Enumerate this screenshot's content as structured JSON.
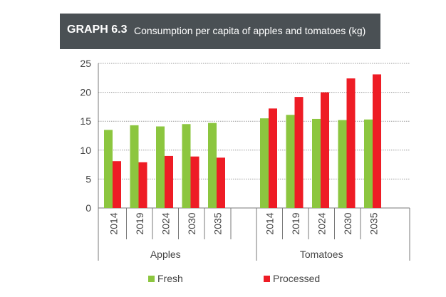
{
  "title": {
    "label": "GRAPH 6.3",
    "text": "Consumption per capita of apples and tomatoes (kg)"
  },
  "chart_data": {
    "type": "bar",
    "title": "GRAPH 6.3 Consumption per capita of apples and tomatoes (kg)",
    "xlabel": "",
    "ylabel": "",
    "ylim": [
      0,
      25
    ],
    "yticks": [
      0,
      5,
      10,
      15,
      20,
      25
    ],
    "grid": true,
    "legend_position": "bottom",
    "groups": [
      {
        "name": "Apples",
        "categories": [
          "2014",
          "2019",
          "2024",
          "2030",
          "2035"
        ]
      },
      {
        "name": "Tomatoes",
        "categories": [
          "2014",
          "2019",
          "2024",
          "2030",
          "2035"
        ]
      }
    ],
    "series": [
      {
        "name": "Fresh",
        "color": "#8cc63f",
        "values": [
          [
            13.5,
            14.3,
            14.1,
            14.5,
            14.7
          ],
          [
            15.5,
            16.1,
            15.4,
            15.2,
            15.3
          ]
        ]
      },
      {
        "name": "Processed",
        "color": "#ee1c25",
        "values": [
          [
            8.1,
            7.9,
            9.0,
            8.9,
            8.7
          ],
          [
            17.2,
            19.2,
            20.0,
            22.4,
            23.1
          ]
        ]
      }
    ]
  }
}
